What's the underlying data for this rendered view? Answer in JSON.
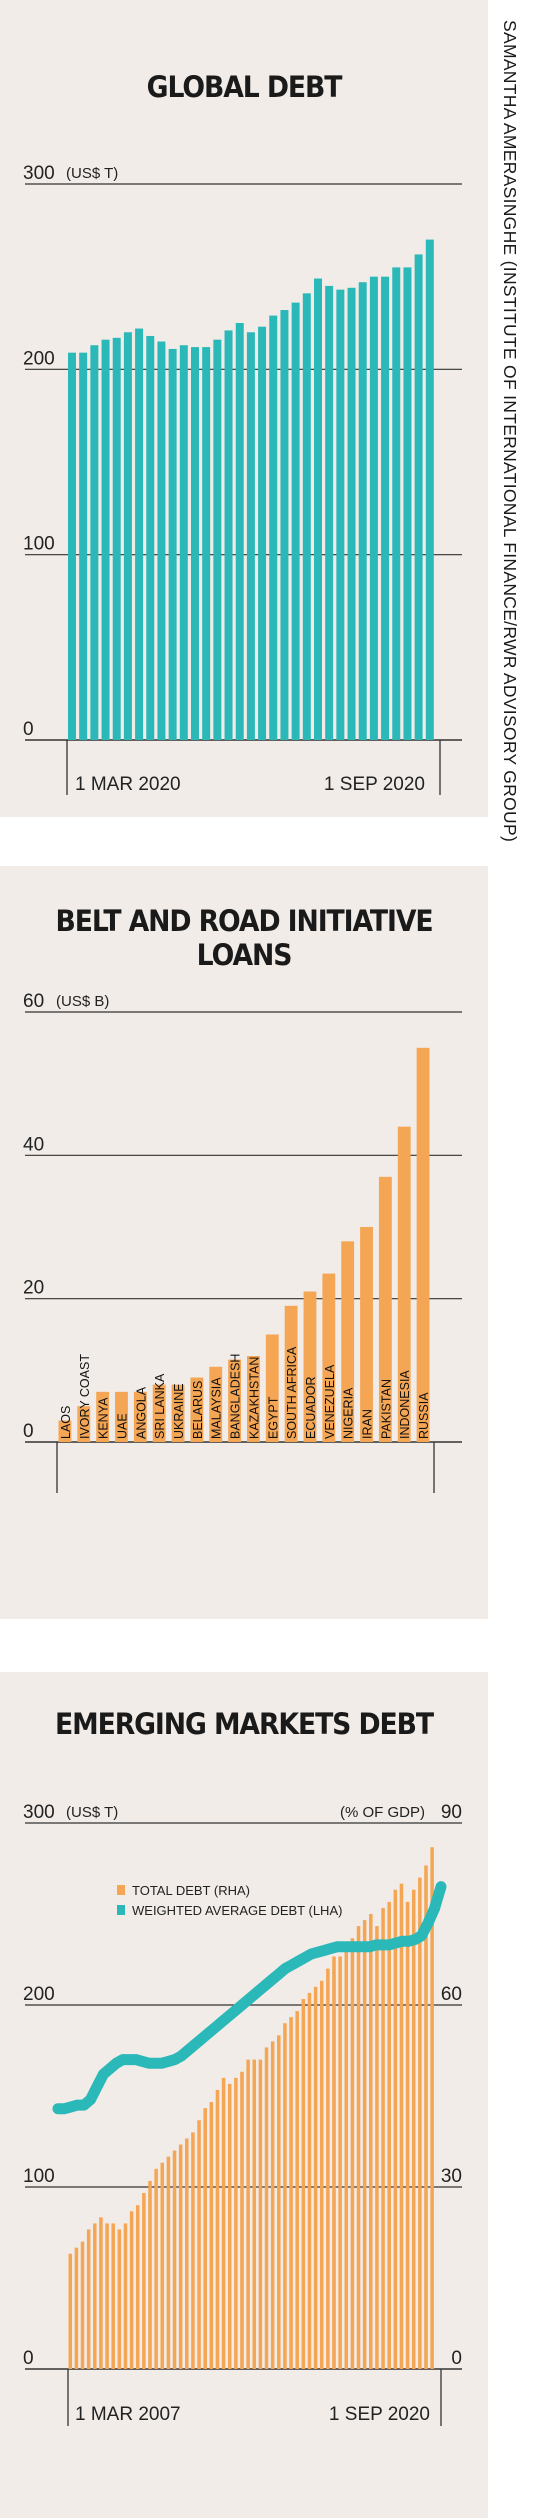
{
  "credit": "SAMANTHA AMERASINGHE (INSTITUTE OF INTERNATIONAL FINANCE/RWR ADVISORY GROUP)",
  "colors": {
    "teal": "#2ab8b8",
    "orange": "#f5a655",
    "panel": "#f1ece8",
    "axis": "#333333"
  },
  "chart_data": [
    {
      "type": "bar",
      "title": "GLOBAL DEBT",
      "ylabel": "(US$ T)",
      "ylim": [
        0,
        300
      ],
      "yticks": [
        "300",
        "200",
        "100",
        "0"
      ],
      "xticks": [
        "1 MAR 2020",
        "1 SEP 2020"
      ],
      "grid": true,
      "values": [
        209,
        209,
        213,
        216,
        217,
        220,
        222,
        218,
        215,
        211,
        213,
        212,
        212,
        216,
        221,
        225,
        220,
        223,
        229,
        232,
        236,
        241,
        249,
        245,
        243,
        244,
        247,
        250,
        250,
        255,
        255,
        262,
        270
      ]
    },
    {
      "type": "bar",
      "title": "BELT AND ROAD INITIATIVE LOANS",
      "ylabel": "(US$ B)",
      "ylim": [
        0,
        60
      ],
      "yticks": [
        "60",
        "40",
        "20",
        "0"
      ],
      "grid": true,
      "categories": [
        "LAOS",
        "IVORY COAST",
        "KENYA",
        "UAE",
        "ANGOLA",
        "SRI LANKA",
        "UKRAINE",
        "BELARUS",
        "MALAYSIA",
        "BANGLADESH",
        "KAZAKHSTAN",
        "EGYPT",
        "SOUTH AFRICA",
        "ECUADOR",
        "VENEZUELA",
        "NIGERIA",
        "IRAN",
        "PAKISTAN",
        "INDONESIA",
        "RUSSIA"
      ],
      "values": [
        3,
        5,
        7,
        7,
        7,
        8,
        8,
        9,
        10.5,
        11.5,
        12,
        15,
        19,
        21,
        23.5,
        28,
        30,
        37,
        44,
        55
      ]
    },
    {
      "type": "bar",
      "title": "EMERGING MARKETS DEBT",
      "ylabel": "(US$ T)",
      "ylabel_right": "(% OF GDP)",
      "ylim": [
        0,
        300
      ],
      "ylim_right": [
        0,
        90
      ],
      "yticks": [
        "300",
        "200",
        "100",
        "0"
      ],
      "yticks_right": [
        "90",
        "60",
        "30",
        "0"
      ],
      "xticks": [
        "1 MAR 2007",
        "1 SEP 2020"
      ],
      "grid": true,
      "legend": [
        "TOTAL DEBT (RHA)",
        "WEIGHTED AVERAGE DEBT (LHA)"
      ],
      "series": [
        {
          "name": "TOTAL DEBT (RHA)",
          "values": [
            19,
            20,
            21,
            23,
            24,
            25,
            24,
            24,
            23,
            24,
            26,
            27,
            29,
            31,
            33,
            34,
            35,
            36,
            37,
            38,
            39,
            41,
            43,
            44,
            46,
            48,
            47,
            48,
            49,
            51,
            51,
            51,
            53,
            54,
            55,
            57,
            58,
            59,
            61,
            62,
            63,
            64,
            66,
            68,
            68,
            70,
            71,
            73,
            74,
            75,
            73,
            76,
            77,
            79,
            80,
            77,
            79,
            81,
            83,
            86
          ]
        },
        {
          "name": "WEIGHTED AVERAGE DEBT (LHA)",
          "values": [
            143,
            143,
            144,
            145,
            145,
            148,
            155,
            162,
            165,
            168,
            170,
            170,
            170,
            169,
            168,
            168,
            168,
            169,
            170,
            172,
            175,
            178,
            181,
            184,
            187,
            190,
            193,
            196,
            199,
            202,
            205,
            208,
            211,
            214,
            217,
            220,
            222,
            224,
            226,
            228,
            229,
            230,
            231,
            232,
            232,
            232,
            232,
            232,
            232,
            233,
            233,
            233,
            234,
            235,
            235,
            236,
            238,
            245,
            253,
            265
          ]
        }
      ]
    }
  ]
}
